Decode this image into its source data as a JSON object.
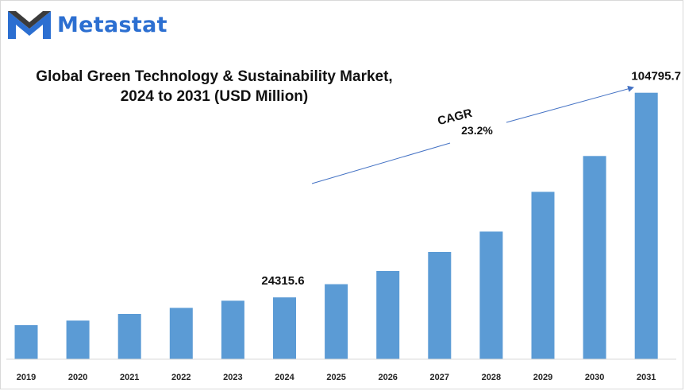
{
  "brand": {
    "name": "Metastat",
    "logo_icon": "metastat-m-logo-icon"
  },
  "colors": {
    "bar": "#5b9bd5",
    "brand": "#2c6fd1",
    "arrow": "#4472c4",
    "axis": "#d9d9d9"
  },
  "chart_data": {
    "type": "bar",
    "title": "Global Green Technology & Sustainability Market,",
    "subtitle": "2024 to 2031 (USD Million)",
    "categories": [
      "2019",
      "2020",
      "2021",
      "2022",
      "2023",
      "2024",
      "2025",
      "2026",
      "2027",
      "2028",
      "2029",
      "2030",
      "2031"
    ],
    "values": [
      13400,
      15200,
      17800,
      20200,
      23000,
      24315.6,
      29500,
      34700,
      42200,
      50200,
      65800,
      79900,
      104795.7
    ],
    "data_labels": {
      "2024": "24315.6",
      "2031": "104795.7"
    },
    "annotation": {
      "label": "CAGR",
      "value": "23.2%"
    },
    "ylim": [
      0,
      110000
    ],
    "grid": false,
    "legend": "none"
  }
}
